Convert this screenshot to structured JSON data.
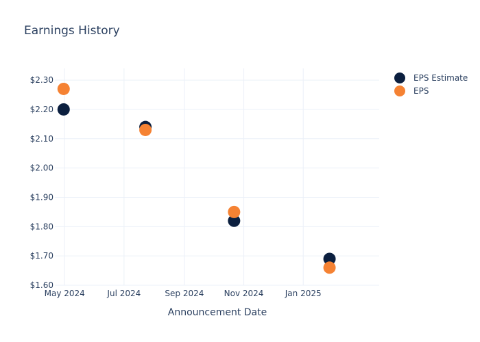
{
  "chart_data": {
    "type": "scatter",
    "title": "Earnings History",
    "xlabel": "Announcement Date",
    "ylabel": "",
    "x_ticks": [
      "May 2024",
      "Jul 2024",
      "Sep 2024",
      "Nov 2024",
      "Jan 2025"
    ],
    "y_ticks": [
      "$1.60",
      "$1.70",
      "$1.80",
      "$1.90",
      "$2.00",
      "$2.10",
      "$2.20",
      "$2.30"
    ],
    "y_tick_values": [
      1.6,
      1.7,
      1.8,
      1.9,
      2.0,
      2.1,
      2.2,
      2.3
    ],
    "ylim": [
      1.6,
      2.34
    ],
    "xlim": [
      "2024-04-21",
      "2025-03-20"
    ],
    "x_tick_dates": [
      "2024-05-01",
      "2024-07-01",
      "2024-09-01",
      "2024-11-01",
      "2025-01-01"
    ],
    "grid": true,
    "legend_position": "top-right",
    "series": [
      {
        "name": "EPS Estimate",
        "color": "#0b1f3f",
        "points": [
          {
            "x": "2024-04-30",
            "y": 2.2
          },
          {
            "x": "2024-07-23",
            "y": 2.14
          },
          {
            "x": "2024-10-22",
            "y": 1.82
          },
          {
            "x": "2025-01-28",
            "y": 1.69
          }
        ]
      },
      {
        "name": "EPS",
        "color": "#f58233",
        "points": [
          {
            "x": "2024-04-30",
            "y": 2.27
          },
          {
            "x": "2024-07-23",
            "y": 2.13
          },
          {
            "x": "2024-10-22",
            "y": 1.85
          },
          {
            "x": "2025-01-28",
            "y": 1.66
          }
        ]
      }
    ]
  }
}
